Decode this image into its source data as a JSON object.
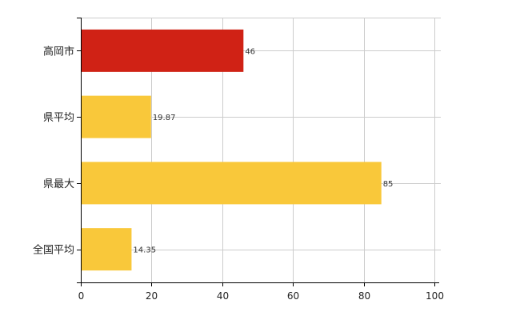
{
  "chart_data": {
    "type": "bar",
    "orientation": "horizontal",
    "categories": [
      "高岡市",
      "県平均",
      "県最大",
      "全国平均"
    ],
    "values": [
      46,
      19.87,
      85,
      14.35
    ],
    "value_labels": [
      "46",
      "19.87",
      "85",
      "14.35"
    ],
    "bar_colors": [
      "#d02215",
      "#f9c83a",
      "#f9c83a",
      "#f9c83a"
    ],
    "xlim": [
      0,
      100
    ],
    "x_ticks": [
      0,
      20,
      40,
      60,
      80,
      100
    ],
    "grid": true,
    "title": "",
    "xlabel": "",
    "ylabel": ""
  }
}
